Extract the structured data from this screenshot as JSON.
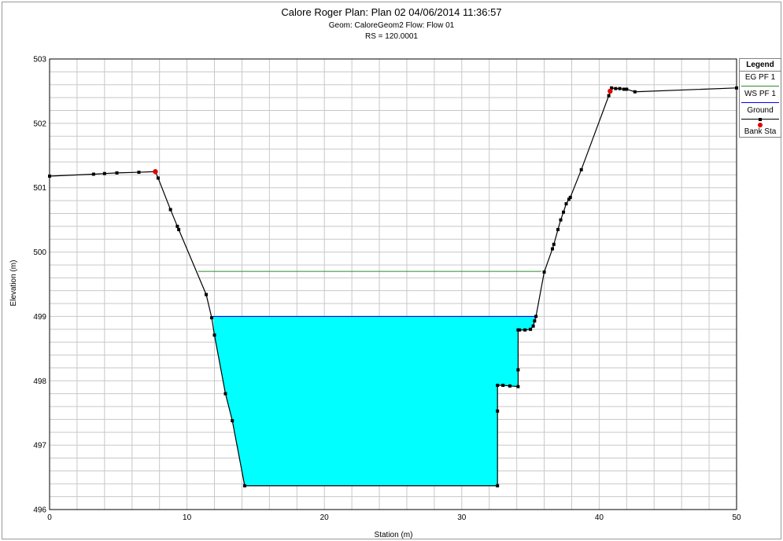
{
  "header": {
    "line1": "Calore Roger      Plan: Plan 02     04/06/2014  11:36:57",
    "line2": "Geom: CaloreGeom2    Flow: Flow 01",
    "line3": "RS = 120.0001"
  },
  "legend": {
    "title": "Legend",
    "items": [
      "EG PF 1",
      "WS PF 1",
      "Ground",
      "Bank Sta"
    ]
  },
  "colors": {
    "water_fill": "#00ffff",
    "ws_line": "#0000ff",
    "eg_line": "#2e8b2e",
    "ground": "#000000",
    "bank_station": "#e00000",
    "grid": "#c8c8c8"
  },
  "chart_data": {
    "type": "line",
    "xlabel": "Station (m)",
    "ylabel": "Elevation (m)",
    "xlim": [
      0,
      50
    ],
    "ylim": [
      496,
      503
    ],
    "xticks": [
      0,
      10,
      20,
      30,
      40,
      50
    ],
    "yticks": [
      496,
      497,
      498,
      499,
      500,
      501,
      502,
      503
    ],
    "grid": true,
    "legend_position": "right",
    "series": [
      {
        "name": "EG PF 1",
        "x": [
          10.8,
          35.8
        ],
        "y": [
          499.7,
          499.7
        ]
      },
      {
        "name": "WS PF 1",
        "x": [
          11.9,
          35.3
        ],
        "y": [
          499.0,
          499.0
        ]
      },
      {
        "name": "Ground",
        "x": [
          0.0,
          3.2,
          4.0,
          4.9,
          6.5,
          7.7,
          7.9,
          8.8,
          9.3,
          9.4,
          11.4,
          11.8,
          12.0,
          12.8,
          13.3,
          14.2,
          32.6,
          32.6,
          32.6,
          33.0,
          33.5,
          34.1,
          34.1,
          34.1,
          34.2,
          34.6,
          35.0,
          35.2,
          35.3,
          35.4,
          36.0,
          36.6,
          36.7,
          37.0,
          37.2,
          37.4,
          37.6,
          37.8,
          37.9,
          38.7,
          40.7,
          40.9,
          41.2,
          41.5,
          41.8,
          42.0,
          42.6,
          50.0
        ],
        "y": [
          501.18,
          501.21,
          501.22,
          501.23,
          501.24,
          501.25,
          501.15,
          500.66,
          500.4,
          500.35,
          499.34,
          498.98,
          498.71,
          497.8,
          497.38,
          496.37,
          496.37,
          497.53,
          497.93,
          497.93,
          497.92,
          497.91,
          498.17,
          498.79,
          498.79,
          498.79,
          498.8,
          498.85,
          498.93,
          499.0,
          499.69,
          500.05,
          500.12,
          500.35,
          500.5,
          500.62,
          500.75,
          500.82,
          500.85,
          501.28,
          502.43,
          502.55,
          502.54,
          502.54,
          502.53,
          502.53,
          502.49,
          502.55
        ]
      },
      {
        "name": "Bank Sta",
        "x": [
          7.7,
          40.8
        ],
        "y": [
          501.25,
          502.5
        ]
      }
    ]
  }
}
